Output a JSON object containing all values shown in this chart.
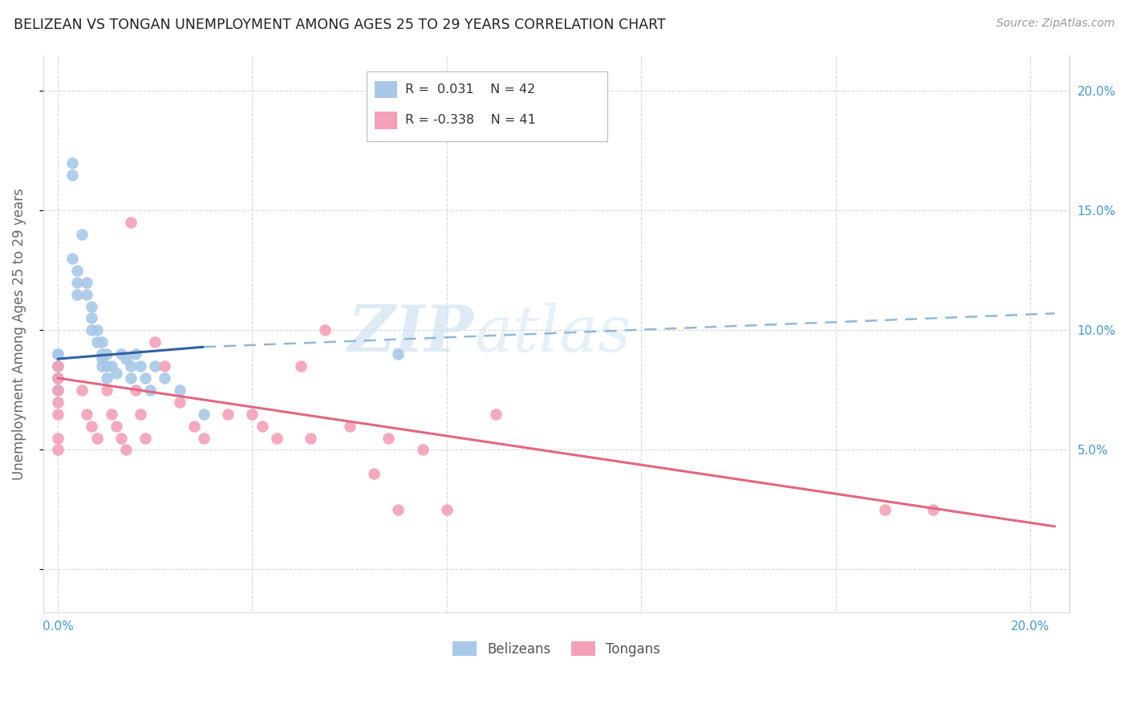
{
  "title": "BELIZEAN VS TONGAN UNEMPLOYMENT AMONG AGES 25 TO 29 YEARS CORRELATION CHART",
  "source": "Source: ZipAtlas.com",
  "ylabel": "Unemployment Among Ages 25 to 29 years",
  "belizean_R": 0.031,
  "belizean_N": 42,
  "tongan_R": -0.338,
  "tongan_N": 41,
  "xlim": [
    -0.003,
    0.208
  ],
  "ylim": [
    -0.018,
    0.215
  ],
  "belizean_color": "#a8c8e8",
  "tongan_color": "#f4a0b8",
  "belizean_line_solid_color": "#3060a0",
  "belizean_line_dash_color": "#90b8d8",
  "tongan_line_color": "#e06880",
  "grid_color": "#d8d8d8",
  "background_color": "#ffffff",
  "watermark": "ZIPatlas",
  "belizean_x": [
    0.0,
    0.0,
    0.0,
    0.0,
    0.0,
    0.0,
    0.003,
    0.003,
    0.003,
    0.004,
    0.004,
    0.004,
    0.005,
    0.006,
    0.006,
    0.007,
    0.007,
    0.007,
    0.008,
    0.008,
    0.009,
    0.009,
    0.009,
    0.009,
    0.01,
    0.01,
    0.01,
    0.011,
    0.012,
    0.013,
    0.014,
    0.015,
    0.015,
    0.016,
    0.017,
    0.018,
    0.019,
    0.02,
    0.022,
    0.025,
    0.03,
    0.07
  ],
  "belizean_y": [
    0.09,
    0.09,
    0.085,
    0.085,
    0.08,
    0.075,
    0.17,
    0.165,
    0.13,
    0.125,
    0.12,
    0.115,
    0.14,
    0.12,
    0.115,
    0.11,
    0.105,
    0.1,
    0.1,
    0.095,
    0.095,
    0.09,
    0.088,
    0.085,
    0.09,
    0.085,
    0.08,
    0.085,
    0.082,
    0.09,
    0.088,
    0.085,
    0.08,
    0.09,
    0.085,
    0.08,
    0.075,
    0.085,
    0.08,
    0.075,
    0.065,
    0.09
  ],
  "tongan_x": [
    0.0,
    0.0,
    0.0,
    0.0,
    0.0,
    0.0,
    0.0,
    0.005,
    0.006,
    0.007,
    0.008,
    0.01,
    0.011,
    0.012,
    0.013,
    0.014,
    0.015,
    0.016,
    0.017,
    0.018,
    0.02,
    0.022,
    0.025,
    0.028,
    0.03,
    0.035,
    0.04,
    0.042,
    0.045,
    0.05,
    0.052,
    0.055,
    0.06,
    0.065,
    0.068,
    0.07,
    0.075,
    0.08,
    0.09,
    0.17,
    0.18
  ],
  "tongan_y": [
    0.085,
    0.08,
    0.075,
    0.07,
    0.065,
    0.055,
    0.05,
    0.075,
    0.065,
    0.06,
    0.055,
    0.075,
    0.065,
    0.06,
    0.055,
    0.05,
    0.145,
    0.075,
    0.065,
    0.055,
    0.095,
    0.085,
    0.07,
    0.06,
    0.055,
    0.065,
    0.065,
    0.06,
    0.055,
    0.085,
    0.055,
    0.1,
    0.06,
    0.04,
    0.055,
    0.025,
    0.05,
    0.025,
    0.065,
    0.025,
    0.025
  ],
  "belizean_line_x0": 0.0,
  "belizean_line_x_solid_end": 0.03,
  "belizean_line_x1": 0.205,
  "belizean_line_y0": 0.088,
  "belizean_line_y_solid_end": 0.093,
  "belizean_line_y1": 0.107,
  "tongan_line_x0": 0.0,
  "tongan_line_x1": 0.205,
  "tongan_line_y0": 0.08,
  "tongan_line_y1": 0.018
}
